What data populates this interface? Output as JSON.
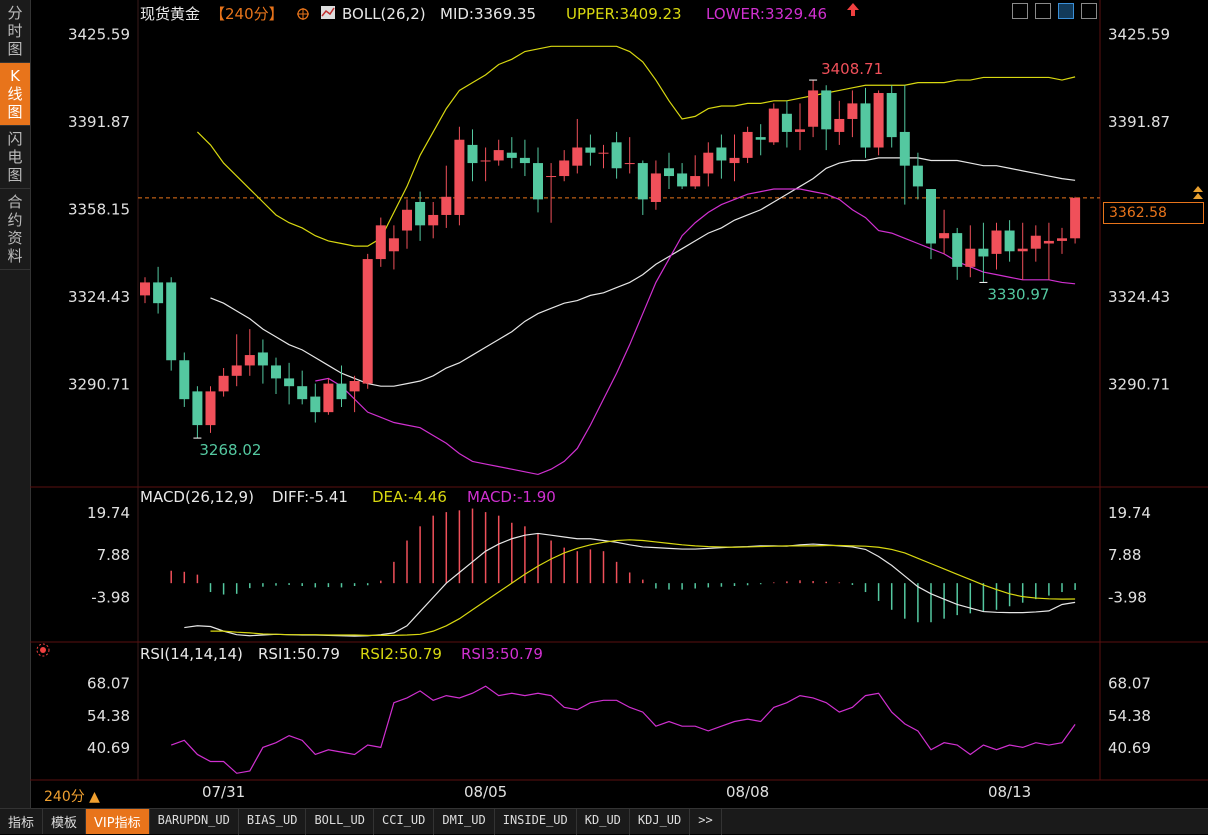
{
  "left_tabs": [
    {
      "label": "分时图",
      "active": false
    },
    {
      "label": "K线图",
      "active": true
    },
    {
      "label": "闪电图",
      "active": false
    },
    {
      "label": "合约资料",
      "active": false
    }
  ],
  "header": {
    "instrument": "现货黄金",
    "period": "【240分】",
    "boll_label": "BOLL(26,2)",
    "mid": "MID:3369.35",
    "upper": "UPPER:3409.23",
    "lower": "LOWER:3329.46"
  },
  "macd_header": {
    "name": "MACD(26,12,9)",
    "diff": "DIFF:-5.41",
    "dea": "DEA:-4.46",
    "macd": "MACD:-1.90"
  },
  "rsi_header": {
    "name": "RSI(14,14,14)",
    "rsi1": "RSI1:50.79",
    "rsi2": "RSI2:50.79",
    "rsi3": "RSI3:50.79"
  },
  "last_price": "3362.58",
  "period_selector": "240分 ▲",
  "bottom_tabs": [
    {
      "label": "指标",
      "active": false,
      "mono": false
    },
    {
      "label": "模板",
      "active": false,
      "mono": false
    },
    {
      "label": "VIP指标",
      "active": true,
      "mono": false
    },
    {
      "label": "BARUPDN_UD",
      "active": false,
      "mono": true
    },
    {
      "label": "BIAS_UD",
      "active": false,
      "mono": true
    },
    {
      "label": "BOLL_UD",
      "active": false,
      "mono": true
    },
    {
      "label": "CCI_UD",
      "active": false,
      "mono": true
    },
    {
      "label": "DMI_UD",
      "active": false,
      "mono": true
    },
    {
      "label": "INSIDE_UD",
      "active": false,
      "mono": true
    },
    {
      "label": "KD_UD",
      "active": false,
      "mono": true
    },
    {
      "label": "KDJ_UD",
      "active": false,
      "mono": true
    },
    {
      "label": ">>",
      "active": false,
      "mono": true
    }
  ],
  "colors": {
    "up": "#f0505a",
    "down": "#54c8a0",
    "mid": "#e6e6e6",
    "upper": "#d8d810",
    "lower": "#d030d0",
    "accent": "#e8741b"
  },
  "chart_data": {
    "type": "candlestick",
    "x_labels": [
      "07/31",
      "08/05",
      "08/08",
      "08/13"
    ],
    "price_axis": {
      "ticks": [
        "3425.59",
        "3391.87",
        "3358.15",
        "3324.43",
        "3290.71"
      ],
      "range": [
        3255,
        3435
      ]
    },
    "annotations": {
      "high": "3408.71",
      "low": "3268.02",
      "recent_low": "3330.97"
    },
    "candles": [
      [
        3325,
        3330,
        3322,
        3332
      ],
      [
        3330,
        3322,
        3318,
        3336
      ],
      [
        3330,
        3300,
        3296,
        3332
      ],
      [
        3300,
        3285,
        3282,
        3303
      ],
      [
        3288,
        3275,
        3270,
        3290
      ],
      [
        3275,
        3288,
        3272,
        3290
      ],
      [
        3288,
        3294,
        3286,
        3297
      ],
      [
        3294,
        3298,
        3290,
        3310
      ],
      [
        3298,
        3302,
        3294,
        3312
      ],
      [
        3303,
        3298,
        3291,
        3308
      ],
      [
        3298,
        3293,
        3287,
        3301
      ],
      [
        3293,
        3290,
        3283,
        3299
      ],
      [
        3290,
        3285,
        3283,
        3296
      ],
      [
        3286,
        3280,
        3276,
        3291
      ],
      [
        3280,
        3291,
        3279,
        3293
      ],
      [
        3291,
        3285,
        3282,
        3298
      ],
      [
        3288,
        3292,
        3280,
        3294
      ],
      [
        3291,
        3339,
        3289,
        3341
      ],
      [
        3339,
        3352,
        3336,
        3355
      ],
      [
        3342,
        3347,
        3335,
        3352
      ],
      [
        3350,
        3358,
        3343,
        3362
      ],
      [
        3361,
        3352,
        3346,
        3365
      ],
      [
        3352,
        3356,
        3347,
        3361
      ],
      [
        3356,
        3363,
        3351,
        3375
      ],
      [
        3356,
        3385,
        3352,
        3390
      ],
      [
        3383,
        3376,
        3369,
        3389
      ],
      [
        3377,
        3377,
        3369,
        3382
      ],
      [
        3377,
        3381,
        3375,
        3385
      ],
      [
        3380,
        3378,
        3374,
        3386
      ],
      [
        3378,
        3376,
        3371,
        3385
      ],
      [
        3376,
        3362,
        3357,
        3382
      ],
      [
        3371,
        3371,
        3353,
        3376
      ],
      [
        3371,
        3377,
        3369,
        3381
      ],
      [
        3375,
        3382,
        3372,
        3393
      ],
      [
        3382,
        3380,
        3375,
        3387
      ],
      [
        3380,
        3380,
        3374,
        3383
      ],
      [
        3384,
        3374,
        3370,
        3388
      ],
      [
        3376,
        3376,
        3372,
        3386
      ],
      [
        3376,
        3362,
        3356,
        3377
      ],
      [
        3361,
        3372,
        3358,
        3377
      ],
      [
        3374,
        3371,
        3366,
        3380
      ],
      [
        3372,
        3367,
        3366,
        3376
      ],
      [
        3367,
        3371,
        3366,
        3379
      ],
      [
        3372,
        3380,
        3367,
        3384
      ],
      [
        3382,
        3377,
        3370,
        3387
      ],
      [
        3376,
        3378,
        3369,
        3387
      ],
      [
        3378,
        3388,
        3376,
        3390
      ],
      [
        3386,
        3385,
        3379,
        3391
      ],
      [
        3384,
        3397,
        3383,
        3399
      ],
      [
        3395,
        3388,
        3382,
        3400
      ],
      [
        3388,
        3389,
        3381,
        3399
      ],
      [
        3390,
        3404,
        3386,
        3408
      ],
      [
        3404,
        3389,
        3381,
        3406
      ],
      [
        3388,
        3393,
        3383,
        3400
      ],
      [
        3393,
        3399,
        3386,
        3404
      ],
      [
        3399,
        3382,
        3378,
        3405
      ],
      [
        3382,
        3403,
        3379,
        3404
      ],
      [
        3403,
        3386,
        3382,
        3406
      ],
      [
        3388,
        3375,
        3360,
        3406
      ],
      [
        3375,
        3367,
        3362,
        3380
      ],
      [
        3366,
        3345,
        3339,
        3366
      ],
      [
        3347,
        3349,
        3341,
        3358
      ],
      [
        3349,
        3336,
        3331,
        3351
      ],
      [
        3336,
        3343,
        3332,
        3352
      ],
      [
        3343,
        3340,
        3330,
        3353
      ],
      [
        3341,
        3350,
        3335,
        3353
      ],
      [
        3350,
        3342,
        3338,
        3354
      ],
      [
        3342,
        3343,
        3331,
        3353
      ],
      [
        3343,
        3348,
        3338,
        3352
      ],
      [
        3345,
        3346,
        3331,
        3353
      ],
      [
        3346,
        3347,
        3341,
        3351
      ],
      [
        3347,
        3362.58,
        3345,
        3363
      ]
    ],
    "boll_mid": [
      3324,
      3322,
      3319,
      3316,
      3312,
      3309,
      3306,
      3304,
      3301,
      3298,
      3295,
      3293,
      3291,
      3290,
      3290,
      3291,
      3292,
      3294,
      3297,
      3299,
      3302,
      3305,
      3308,
      3311,
      3315,
      3318,
      3320,
      3322,
      3323,
      3325,
      3326,
      3328,
      3330,
      3333,
      3337,
      3340,
      3343,
      3346,
      3349,
      3351,
      3354,
      3356,
      3358,
      3361,
      3364,
      3367,
      3370,
      3374,
      3376,
      3377,
      3377,
      3378,
      3378,
      3378,
      3378,
      3377,
      3377,
      3377,
      3376,
      3375,
      3375,
      3374,
      3373,
      3372,
      3371,
      3370,
      3369.35
    ],
    "boll_upper": [
      3388,
      3383,
      3376,
      3371,
      3366,
      3361,
      3356,
      3353,
      3351,
      3348,
      3346,
      3345,
      3344,
      3344,
      3347,
      3357,
      3367,
      3379,
      3388,
      3397,
      3404,
      3407,
      3410,
      3414,
      3416,
      3419,
      3420,
      3421,
      3421,
      3421,
      3421,
      3421,
      3421,
      3419,
      3415,
      3408,
      3400,
      3393,
      3394,
      3397,
      3398,
      3398,
      3399,
      3399,
      3400,
      3400,
      3401,
      3402,
      3403,
      3404,
      3405,
      3406,
      3406,
      3406,
      3406,
      3407,
      3407,
      3407,
      3408,
      3408,
      3409,
      3409,
      3409,
      3409,
      3409,
      3409,
      3408,
      3409.23
    ],
    "boll_lower": [
      3292,
      3293,
      3290,
      3285,
      3280,
      3278,
      3276,
      3275,
      3274,
      3271,
      3268,
      3264,
      3261,
      3260,
      3259,
      3258,
      3257,
      3256,
      3258,
      3261,
      3266,
      3275,
      3285,
      3295,
      3306,
      3318,
      3330,
      3339,
      3348,
      3353,
      3357,
      3360,
      3362,
      3364,
      3365,
      3366,
      3366,
      3366,
      3365,
      3364,
      3362,
      3358,
      3355,
      3350,
      3349,
      3347,
      3345,
      3343,
      3341,
      3338,
      3336,
      3334,
      3333,
      3332,
      3331,
      3331,
      3331,
      3330,
      3329.46
    ],
    "macd_axis": {
      "ticks": [
        "19.74",
        "7.88",
        "-3.98"
      ],
      "range": [
        -16,
        22
      ]
    },
    "macd_bars": [
      3.5,
      3.2,
      2.4,
      -2.5,
      -3.2,
      -3.0,
      -1.4,
      -1.0,
      -0.7,
      -0.5,
      -0.8,
      -1.2,
      -1.1,
      -1.2,
      -0.8,
      -0.6,
      0.7,
      6.0,
      12.0,
      16.0,
      19.0,
      20.0,
      20.5,
      21.0,
      20.0,
      19.0,
      17.0,
      16.0,
      14.0,
      12.0,
      10.0,
      9.0,
      9.5,
      9.0,
      6.0,
      3.0,
      1.0,
      -1.5,
      -1.8,
      -1.8,
      -1.5,
      -1.2,
      -1.0,
      -0.8,
      -0.6,
      -0.3,
      0.2,
      0.5,
      0.8,
      0.6,
      0.4,
      0.2,
      -0.5,
      -2.5,
      -5.0,
      -7.5,
      -10.0,
      -11.0,
      -11.0,
      -10.0,
      -9.0,
      -8.5,
      -8.0,
      -7.5,
      -6.5,
      -5.5,
      -4.5,
      -3.5,
      -2.5,
      -1.9
    ],
    "macd_diff": [
      -12.5,
      -12,
      -12.2,
      -13.5,
      -14.5,
      -14.8,
      -14.6,
      -14.4,
      -14.5,
      -14.6,
      -14.6,
      -14.7,
      -14.8,
      -14.9,
      -14.8,
      -14.5,
      -14.0,
      -12,
      -8,
      -4,
      0,
      3,
      6,
      9,
      11,
      12.5,
      13.5,
      14,
      13.5,
      13,
      12.5,
      12.5,
      12,
      11.5,
      10.8,
      10.2,
      10.0,
      9.8,
      9.6,
      9.6,
      9.8,
      10.0,
      10.2,
      10.3,
      10.5,
      10.5,
      10.4,
      10.8,
      11,
      10.8,
      10.5,
      10.2,
      9.5,
      7.5,
      5,
      2,
      -1,
      -3,
      -4.5,
      -6,
      -7,
      -8,
      -8.2,
      -8.3,
      -8.3,
      -8.1,
      -7.8,
      -6.0,
      -5.41
    ],
    "macd_dea": [
      -13.5,
      -13.5,
      -13.8,
      -14.0,
      -14.3,
      -14.4,
      -14.5,
      -14.5,
      -14.5,
      -14.6,
      -14.6,
      -14.6,
      -14.7,
      -14.7,
      -14.7,
      -14.6,
      -14.4,
      -13.5,
      -12,
      -10,
      -7.5,
      -5,
      -2.5,
      0,
      2.5,
      4.8,
      6.8,
      8.5,
      9.8,
      10.8,
      11.5,
      12.0,
      12.2,
      12.0,
      11.6,
      11.2,
      10.8,
      10.5,
      10.3,
      10.2,
      10.1,
      10.2,
      10.3,
      10.4,
      10.5,
      10.5,
      10.5,
      10.6,
      10.6,
      10.5,
      10.4,
      10.1,
      9.5,
      8.5,
      7.0,
      5.5,
      4.0,
      2.5,
      1,
      -0.5,
      -1.8,
      -3.0,
      -3.8,
      -4.2,
      -4.4,
      -4.5,
      -4.46
    ],
    "rsi_axis": {
      "ticks": [
        "68.07",
        "54.38",
        "40.69"
      ],
      "range": [
        28,
        76
      ]
    },
    "rsi_values": [
      42,
      44,
      38,
      35,
      35,
      30,
      31,
      41,
      43,
      46,
      44,
      38,
      40,
      39,
      38,
      42,
      41,
      60,
      62,
      65,
      61,
      63,
      62,
      64,
      67,
      63,
      64,
      63,
      64,
      63,
      58,
      57,
      60,
      61,
      61,
      58,
      56,
      50,
      52,
      50,
      50,
      48,
      50,
      52,
      53,
      52,
      58,
      60,
      63,
      62,
      60,
      56,
      58,
      63,
      64,
      56,
      51,
      48,
      40,
      43,
      42,
      38,
      42,
      40,
      42,
      41,
      43,
      42,
      43,
      50.79
    ]
  }
}
